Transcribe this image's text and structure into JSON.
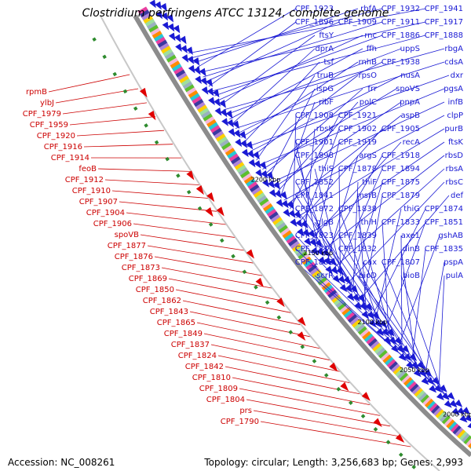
{
  "title": "Clostridium perfringens ATCC 13124, complete genome",
  "footer": {
    "accession": "Accession: NC_008261",
    "summary": "Topology: circular; Length: 3,256,683 bp; Genes: 2,993"
  },
  "ring_labels": [
    "2200 kbp",
    "2150 kbp",
    "2100 kbp",
    "2050 kbp",
    "2000 kbp"
  ],
  "blue_genes": [
    "CPF_1941",
    "CPF_1932",
    "rbfA",
    "CPF_1923",
    "CPF_1917",
    "CPF_1911",
    "CPF_1909",
    "CPF_1896",
    "CPF_1888",
    "CPF_1886",
    "rnc",
    "ftsY",
    "rbgA",
    "uppS",
    "ffh",
    "dprA",
    "cdsA",
    "CPF_1938",
    "rnhB",
    "tsf",
    "dxr",
    "nusA",
    "rpsO",
    "truB",
    "pgsA",
    "spoVS",
    "frr",
    "ispG",
    "infB",
    "pnpA",
    "polC",
    "ribF",
    "clpP",
    "aspB",
    "CPF_1921",
    "CPF_1908",
    "purB",
    "CPF_1905",
    "CPF_1902",
    "rbsK",
    "ftsK",
    "recA",
    "CPF_1919",
    "CPF_1901",
    "rbsD",
    "CPF_1918",
    "argS",
    "CPF_1898",
    "rbsA",
    "CPF_1894",
    "CPF_1878",
    "thiS",
    "rbsC",
    "CPF_1875",
    "thiF",
    "CPF_1852",
    "def",
    "CPF_1879",
    "msrB",
    "CPF_1841",
    "CPF_1874",
    "thiG",
    "CPF_1838",
    "CPF_1872",
    "CPF_1851",
    "CPF_1833",
    "thiH",
    "glgB",
    "gshAB",
    "axe1",
    "CPF_1839",
    "CPF_1823",
    "CPF_1835",
    "dinB",
    "CPF_1832",
    "CPF_1811",
    "pspA",
    "CPF_1807",
    "cax",
    "CPF_1802",
    "pulA",
    "bioB",
    "bioD",
    "scrR"
  ],
  "red_genes": [
    "rpmB",
    "ylbJ",
    "CPF_1979",
    "CPF_1959",
    "CPF_1920",
    "CPF_1916",
    "CPF_1914",
    "feoB",
    "CPF_1912",
    "CPF_1910",
    "CPF_1907",
    "CPF_1904",
    "CPF_1906",
    "spoVB",
    "CPF_1877",
    "CPF_1876",
    "CPF_1873",
    "CPF_1869",
    "CPF_1850",
    "CPF_1862",
    "CPF_1843",
    "CPF_1865",
    "CPF_1849",
    "CPF_1837",
    "CPF_1824",
    "CPF_1842",
    "CPF_1810",
    "CPF_1809",
    "CPF_1804",
    "prs",
    "CPF_1790"
  ],
  "colors": {
    "forward_strand": "#1a1ad4",
    "reverse_strand": "#e00000",
    "rna_feature": "#2e8b2e",
    "backbone": "#8c8c8c"
  }
}
